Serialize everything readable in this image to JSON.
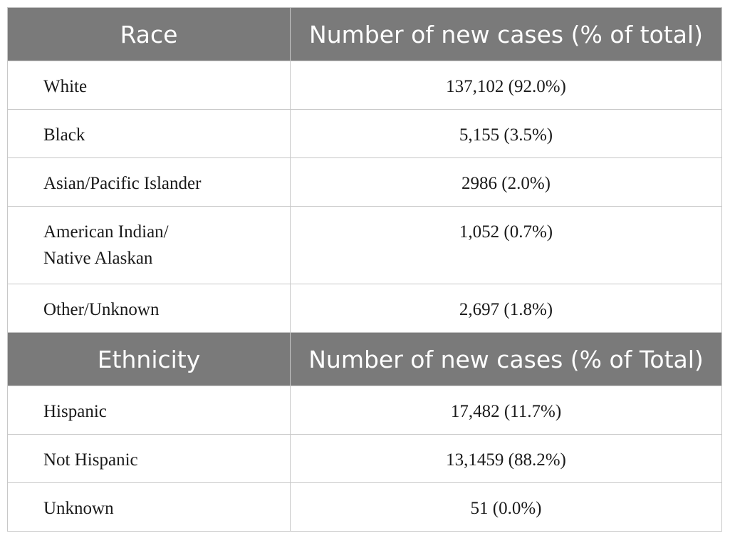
{
  "race_section": {
    "header": {
      "col1": "Race",
      "col2": "Number of new cases (% of total)"
    },
    "rows": [
      {
        "label": "White",
        "value": "137,102 (92.0%)"
      },
      {
        "label": "Black",
        "value": "5,155 (3.5%)"
      },
      {
        "label": "Asian/Pacific Islander",
        "value": "2986 (2.0%)"
      },
      {
        "label_line1": "American Indian/",
        "label_line2": "Native Alaskan",
        "value": "1,052 (0.7%)"
      },
      {
        "label": "Other/Unknown",
        "value": "2,697 (1.8%)"
      }
    ]
  },
  "ethnicity_section": {
    "header": {
      "col1": "Ethnicity",
      "col2": "Number of new cases (% of Total)"
    },
    "rows": [
      {
        "label": "Hispanic",
        "value": "17,482 (11.7%)"
      },
      {
        "label": "Not Hispanic",
        "value": "13,1459 (88.2%)"
      },
      {
        "label": "Unknown",
        "value": "51 (0.0%)"
      }
    ]
  }
}
